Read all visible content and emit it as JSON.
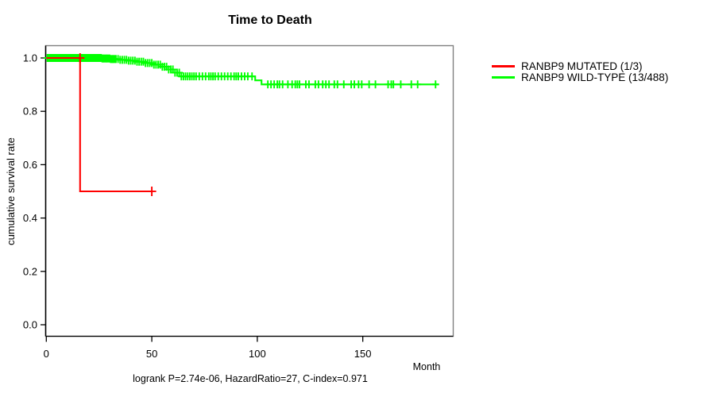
{
  "chart_data": {
    "type": "line",
    "subtype": "kaplan-meier-step-curves",
    "title": "Time to Death",
    "xlabel": "Month",
    "ylabel": "cumulative survival rate",
    "annotation": "logrank P=2.74e-06, HazardRatio=27, C-index=0.971",
    "xlim": [
      0,
      193
    ],
    "ylim": [
      -0.04,
      1.05
    ],
    "xticks": [
      0,
      50,
      100,
      150
    ],
    "xticklabels": [
      "0",
      "50",
      "100",
      "150"
    ],
    "yticks": [
      0.0,
      0.2,
      0.4,
      0.6,
      0.8,
      1.0
    ],
    "yticklabels": [
      "0.0",
      "0.2",
      "0.4",
      "0.6",
      "0.8",
      "1.0"
    ],
    "grid": false,
    "legend_position": "right-outside",
    "series": [
      {
        "name": "RANBP9 MUTATED (1/3)",
        "color": "#ff0000",
        "start_value": 1.0,
        "end_month": 50,
        "drops": [
          [
            16,
            0.5
          ]
        ],
        "censor_months": [
          16,
          50
        ]
      },
      {
        "name": "RANBP9 WILD-TYPE (13/488)",
        "color": "#00ff00",
        "start_value": 1.0,
        "end_month": 186,
        "drops": [
          [
            26,
            0.998
          ],
          [
            30,
            0.996
          ],
          [
            34,
            0.993
          ],
          [
            38,
            0.99
          ],
          [
            42,
            0.986
          ],
          [
            46,
            0.981
          ],
          [
            50,
            0.975
          ],
          [
            54,
            0.967
          ],
          [
            57,
            0.957
          ],
          [
            60,
            0.945
          ],
          [
            63,
            0.931
          ],
          [
            99,
            0.916
          ],
          [
            102,
            0.901
          ]
        ],
        "censor_months": [
          0.5,
          1,
          1.5,
          2,
          2.5,
          3,
          3.5,
          4,
          4.5,
          5,
          5.5,
          6,
          6.5,
          7,
          7.5,
          8,
          8.5,
          9,
          9.5,
          10,
          10.5,
          11,
          11.5,
          12,
          12.5,
          13,
          13.5,
          14,
          14.5,
          15,
          15.5,
          16,
          16.5,
          17,
          17.5,
          18,
          18.5,
          19,
          19.5,
          20,
          20.5,
          21,
          21.5,
          22,
          22.5,
          23,
          23.5,
          24,
          24.5,
          25,
          25.5,
          26,
          26.5,
          27,
          27.5,
          28,
          28.5,
          29,
          29.5,
          30,
          30.5,
          31,
          31.5,
          32,
          32.5,
          33,
          34,
          35,
          36,
          37,
          38,
          39,
          40,
          41,
          42,
          43,
          44,
          45,
          46,
          47,
          48,
          49,
          50,
          51,
          52,
          53,
          54,
          55,
          56,
          57,
          58,
          59,
          60,
          61,
          62,
          63,
          64,
          65,
          66,
          67,
          68,
          69,
          70,
          71,
          72.5,
          74,
          75.5,
          77,
          78,
          79,
          80,
          81.5,
          83,
          84.5,
          86,
          87.5,
          89,
          90,
          91,
          92.5,
          94,
          95.5,
          97.5,
          105,
          106.5,
          108,
          109.5,
          110.5,
          112,
          114.5,
          116.5,
          118,
          119,
          120,
          123,
          124.5,
          127.5,
          129,
          131,
          132.5,
          134,
          136.5,
          138,
          141,
          144.5,
          146,
          148,
          149.5,
          153,
          156,
          162,
          163.5,
          164.5,
          168,
          173,
          176,
          184.5
        ]
      }
    ]
  }
}
